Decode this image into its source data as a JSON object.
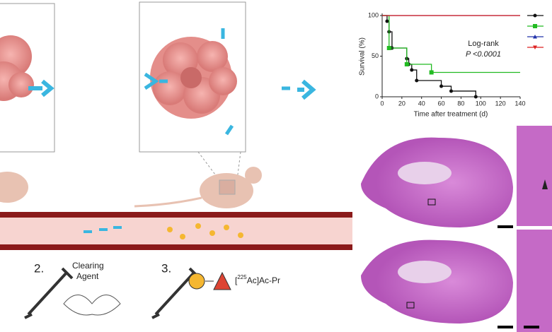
{
  "chart_data": {
    "type": "step",
    "x_label": "Time after treatment (d)",
    "y_label": "Survival (%)",
    "annotations": [
      "Log-rank",
      "P <0.0001"
    ],
    "xlim": [
      0,
      140
    ],
    "xticks": [
      0,
      20,
      40,
      60,
      80,
      100,
      120,
      140
    ],
    "ylim": [
      0,
      100
    ],
    "yticks": [
      0,
      50,
      100
    ],
    "series": [
      {
        "color": "#111111",
        "marker": "circle",
        "x": [
          0,
          5,
          7,
          10,
          25,
          27,
          30,
          35,
          60,
          70,
          95
        ],
        "values": [
          100,
          93,
          80,
          60,
          47,
          40,
          33,
          20,
          13,
          7,
          0
        ]
      },
      {
        "color": "#22bb22",
        "marker": "square",
        "x": [
          0,
          7,
          25,
          50,
          140
        ],
        "values": [
          100,
          60,
          40,
          30,
          30
        ]
      },
      {
        "color": "#2233aa",
        "marker": "triangle",
        "x": [
          0,
          140
        ],
        "values": [
          100,
          100
        ]
      },
      {
        "color": "#dd2222",
        "marker": "triangle-down",
        "x": [
          0,
          140
        ],
        "values": [
          100,
          100
        ]
      }
    ]
  },
  "steps": [
    {
      "number": "2.",
      "label": [
        "Clearing",
        "Agent"
      ]
    },
    {
      "number": "3.",
      "label": [
        "[",
        "225",
        "Ac]Ac-Pr"
      ]
    }
  ]
}
